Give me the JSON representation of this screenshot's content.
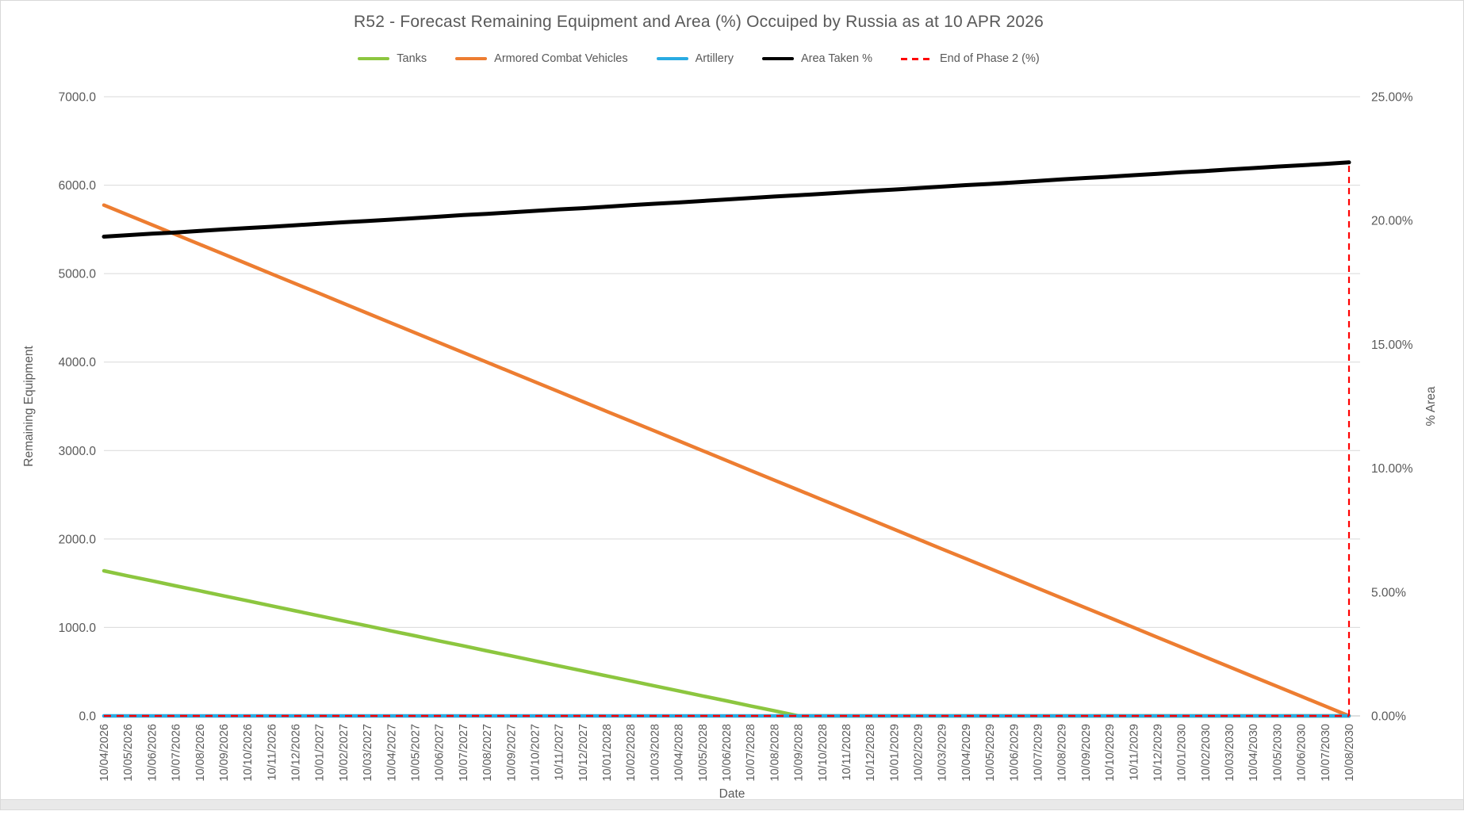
{
  "chart_data": {
    "type": "line",
    "title": "R52 - Forecast Remaining Equipment and Area (%) Occuiped by Russia as at 10 APR 2026",
    "legend_position": "top",
    "grid": "horizontal",
    "x_axis": {
      "title": "Date",
      "categories": [
        "10/04/2026",
        "10/05/2026",
        "10/06/2026",
        "10/07/2026",
        "10/08/2026",
        "10/09/2026",
        "10/10/2026",
        "10/11/2026",
        "10/12/2026",
        "10/01/2027",
        "10/02/2027",
        "10/03/2027",
        "10/04/2027",
        "10/05/2027",
        "10/06/2027",
        "10/07/2027",
        "10/08/2027",
        "10/09/2027",
        "10/10/2027",
        "10/11/2027",
        "10/12/2027",
        "10/01/2028",
        "10/02/2028",
        "10/03/2028",
        "10/04/2028",
        "10/05/2028",
        "10/06/2028",
        "10/07/2028",
        "10/08/2028",
        "10/09/2028",
        "10/10/2028",
        "10/11/2028",
        "10/12/2028",
        "10/01/2029",
        "10/02/2029",
        "10/03/2029",
        "10/04/2029",
        "10/05/2029",
        "10/06/2029",
        "10/07/2029",
        "10/08/2029",
        "10/09/2029",
        "10/10/2029",
        "10/11/2029",
        "10/12/2029",
        "10/01/2030",
        "10/02/2030",
        "10/03/2030",
        "10/04/2030",
        "10/05/2030",
        "10/06/2030",
        "10/07/2030",
        "10/08/2030"
      ]
    },
    "left_axis": {
      "title": "Remaining Equipment",
      "min": 0,
      "max": 7000,
      "tick_labels": [
        "0.0",
        "1000.0",
        "2000.0",
        "3000.0",
        "4000.0",
        "5000.0",
        "6000.0",
        "7000.0"
      ]
    },
    "right_axis": {
      "title": "% Area",
      "min": 0,
      "max": 25,
      "tick_labels": [
        "0.00%",
        "5.00%",
        "10.00%",
        "15.00%",
        "20.00%",
        "25.00%"
      ]
    },
    "series": [
      {
        "name": "Tanks",
        "color": "#8CC63F",
        "axis": "left",
        "style": "solid",
        "width": 4.5,
        "values": [
          1640,
          1583,
          1527,
          1470,
          1414,
          1357,
          1301,
          1244,
          1188,
          1131,
          1074,
          1018,
          961,
          905,
          848,
          792,
          735,
          679,
          622,
          566,
          509,
          452,
          396,
          339,
          283,
          226,
          170,
          113,
          57,
          0,
          0,
          0,
          0,
          0,
          0,
          0,
          0,
          0,
          0,
          0,
          0,
          0,
          0,
          0,
          0,
          0,
          0,
          0,
          0,
          0,
          0,
          0,
          0
        ]
      },
      {
        "name": "Armored Combat Vehicles",
        "color": "#ED7D31",
        "axis": "left",
        "style": "solid",
        "width": 4.5,
        "values": [
          5775,
          5664,
          5553,
          5442,
          5331,
          5220,
          5109,
          4998,
          4887,
          4776,
          4664,
          4553,
          4442,
          4331,
          4220,
          4109,
          3998,
          3887,
          3776,
          3665,
          3554,
          3443,
          3332,
          3221,
          3110,
          2999,
          2888,
          2776,
          2665,
          2554,
          2443,
          2332,
          2221,
          2110,
          1999,
          1888,
          1777,
          1666,
          1555,
          1444,
          1333,
          1222,
          1111,
          1000,
          888,
          777,
          666,
          555,
          444,
          333,
          222,
          111,
          0
        ]
      },
      {
        "name": "Artillery",
        "color": "#29ABE2",
        "axis": "left",
        "style": "solid",
        "width": 4.5,
        "values": [
          0,
          0,
          0,
          0,
          0,
          0,
          0,
          0,
          0,
          0,
          0,
          0,
          0,
          0,
          0,
          0,
          0,
          0,
          0,
          0,
          0,
          0,
          0,
          0,
          0,
          0,
          0,
          0,
          0,
          0,
          0,
          0,
          0,
          0,
          0,
          0,
          0,
          0,
          0,
          0,
          0,
          0,
          0,
          0,
          0,
          0,
          0,
          0,
          0,
          0,
          0,
          0,
          0
        ]
      },
      {
        "name": "Area Taken %",
        "color": "#000000",
        "axis": "right",
        "style": "solid",
        "width": 5,
        "values": [
          19.35,
          19.41,
          19.47,
          19.52,
          19.58,
          19.64,
          19.7,
          19.75,
          19.81,
          19.87,
          19.93,
          19.98,
          20.04,
          20.1,
          20.16,
          20.22,
          20.27,
          20.33,
          20.39,
          20.45,
          20.5,
          20.56,
          20.62,
          20.68,
          20.73,
          20.79,
          20.85,
          20.91,
          20.97,
          21.02,
          21.08,
          21.14,
          21.2,
          21.25,
          21.31,
          21.37,
          21.43,
          21.48,
          21.54,
          21.6,
          21.66,
          21.72,
          21.77,
          21.83,
          21.89,
          21.95,
          22.0,
          22.06,
          22.12,
          22.18,
          22.23,
          22.29,
          22.35
        ]
      }
    ],
    "marker": {
      "name": "End of Phase 2 (%)",
      "color": "#FF0000",
      "style": "dashed",
      "date": "10/08/2030",
      "baseline_pct": 0,
      "value_pct": 22.35
    }
  },
  "colors": {
    "grid": "#D9D9D9",
    "axis_line": "#BFBFBF",
    "text": "#595959",
    "background": "#FFFFFF"
  }
}
